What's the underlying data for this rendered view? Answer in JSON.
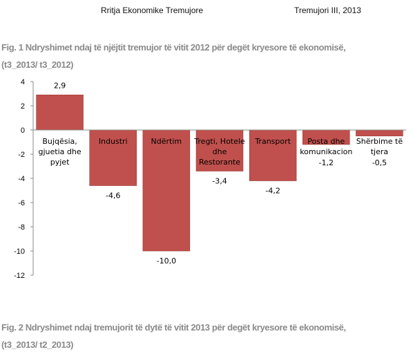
{
  "header": {
    "left": "Rritja Ekonomike Tremujore",
    "right": "Tremujori III, 2013"
  },
  "fig1": {
    "title_line1": "Fig. 1 Ndryshimet  ndaj të njëjtit tremujor të vitit 2012 për degët kryesore të ekonomisë,",
    "title_line2": "(t3_2013/ t3_2012)"
  },
  "fig2": {
    "title_line1": "Fig. 2 Ndryshimet ndaj tremujorit të dytë të vitit 2013 për degët kryesore të ekonomisë,",
    "title_line2": "(t3_2013/ t2_2013)"
  },
  "chart_data": {
    "type": "bar",
    "categories": [
      "Bujqësia, gjuetia dhe pyjet",
      "Industri",
      "Ndërtim",
      "Tregti, Hotele dhe Restorante",
      "Transport",
      "Posta dhe komunikacion",
      "Shërbime të tjera"
    ],
    "category_lines": [
      [
        "Bujqësia,",
        "gjuetia dhe",
        "pyjet"
      ],
      [
        "Industri"
      ],
      [
        "Ndërtim"
      ],
      [
        "Tregti, Hotele",
        "dhe",
        "Restorante"
      ],
      [
        "Transport"
      ],
      [
        "Posta dhe",
        "komunikacion"
      ],
      [
        "Shërbime të",
        "tjera"
      ]
    ],
    "values": [
      2.9,
      -4.6,
      -10.0,
      -3.4,
      -4.2,
      -1.2,
      -0.5
    ],
    "value_labels": [
      "2,9",
      "-4,6",
      "-10,0",
      "-3,4",
      "-4,2",
      "-1,2",
      "-0,5"
    ],
    "ylim": [
      -12,
      4
    ],
    "yticks": [
      4,
      2,
      0,
      -2,
      -4,
      -6,
      -8,
      -10,
      -12
    ],
    "bar_color": "#c0504d",
    "bar_edge_color": "#9a3532",
    "grid": false,
    "legend": "none"
  }
}
